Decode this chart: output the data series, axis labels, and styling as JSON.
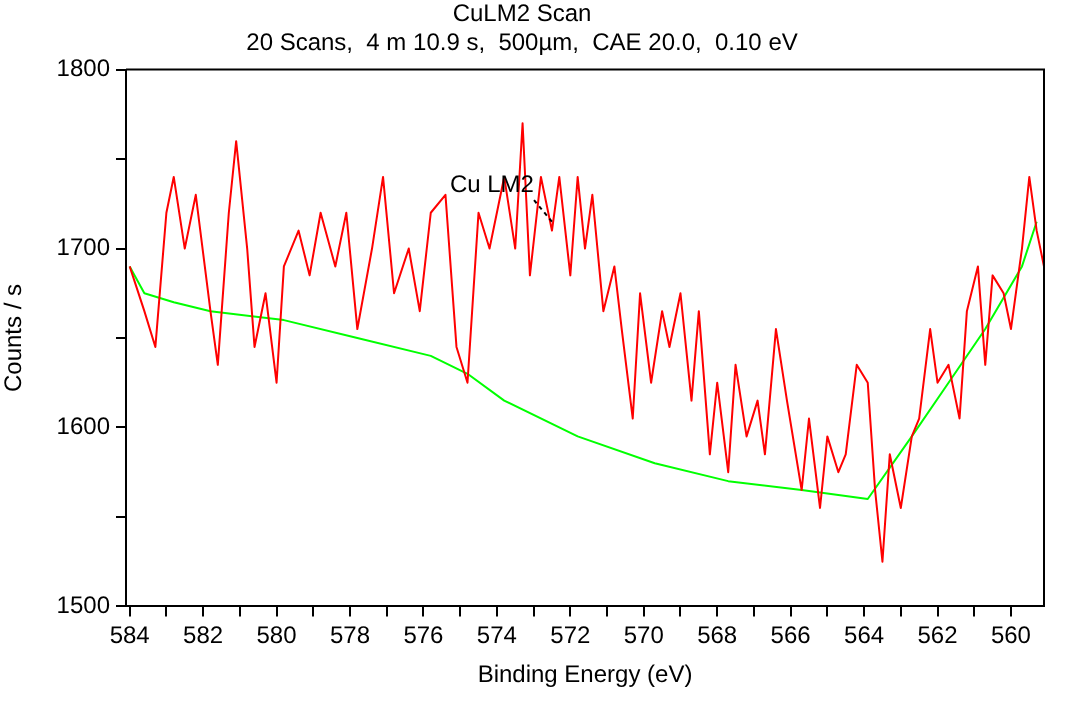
{
  "chart_data": {
    "type": "line",
    "title": "CuLM2 Scan",
    "subtitle": "20 Scans,  4 m 10.9 s,  500µm,  CAE 20.0,  0.10 eV",
    "xlabel": "Binding Energy (eV)",
    "ylabel": "Counts / s",
    "xlim": [
      584.1,
      559.1
    ],
    "xticks": [
      584,
      {
        "value": 583,
        "label": null
      },
      582,
      {
        "value": 581,
        "label": null
      },
      580,
      {
        "value": 579,
        "label": null
      },
      578,
      {
        "value": 577,
        "label": null
      },
      576,
      {
        "value": 575,
        "label": null
      },
      574,
      {
        "value": 573,
        "label": null
      },
      572,
      {
        "value": 571,
        "label": null
      },
      570,
      {
        "value": 569,
        "label": null
      },
      568,
      {
        "value": 567,
        "label": null
      },
      566,
      {
        "value": 565,
        "label": null
      },
      564,
      {
        "value": 563,
        "label": null
      },
      562,
      {
        "value": 561,
        "label": null
      },
      560
    ],
    "ylim": [
      1500,
      1800
    ],
    "yticks": [
      1500,
      {
        "value": 1550,
        "label": null
      },
      1600,
      {
        "value": 1650,
        "label": null
      },
      1700,
      {
        "value": 1750,
        "label": null
      },
      1800
    ],
    "grid": false,
    "legend": false,
    "marker": "none",
    "line_style": "solid",
    "annotations": [
      {
        "text": "Cu LM2",
        "x": 572.5,
        "y": 1715
      }
    ],
    "series": [
      {
        "color": "#ff0000",
        "x": [
          584.0,
          583.6,
          583.3,
          583.0,
          582.8,
          582.5,
          582.2,
          581.8,
          581.6,
          581.3,
          581.1,
          580.8,
          580.6,
          580.3,
          580.0,
          579.8,
          579.4,
          579.1,
          578.8,
          578.4,
          578.1,
          577.8,
          577.4,
          577.1,
          576.8,
          576.4,
          576.1,
          575.8,
          575.4,
          575.1,
          574.8,
          574.5,
          574.2,
          574.0,
          573.8,
          573.5,
          573.3,
          573.1,
          572.8,
          572.5,
          572.3,
          572.0,
          571.8,
          571.6,
          571.4,
          571.1,
          570.8,
          570.6,
          570.3,
          570.1,
          569.8,
          569.5,
          569.3,
          569.0,
          568.7,
          568.5,
          568.2,
          568.0,
          567.7,
          567.5,
          567.2,
          566.9,
          566.7,
          566.4,
          566.1,
          565.7,
          565.5,
          565.2,
          565.0,
          564.7,
          564.5,
          564.2,
          563.9,
          563.7,
          563.5,
          563.3,
          563.0,
          562.7,
          562.5,
          562.2,
          562.0,
          561.7,
          561.4,
          561.2,
          560.9,
          560.7,
          560.5,
          560.2,
          560.0,
          559.7,
          559.5,
          559.3,
          559.1
        ],
        "values": [
          1690,
          1665,
          1645,
          1720,
          1740,
          1700,
          1730,
          1665,
          1635,
          1720,
          1760,
          1700,
          1645,
          1675,
          1625,
          1690,
          1710,
          1685,
          1720,
          1690,
          1720,
          1655,
          1700,
          1740,
          1675,
          1700,
          1665,
          1720,
          1730,
          1645,
          1625,
          1720,
          1700,
          1720,
          1740,
          1700,
          1770,
          1685,
          1740,
          1710,
          1740,
          1685,
          1740,
          1700,
          1730,
          1665,
          1690,
          1655,
          1605,
          1675,
          1625,
          1665,
          1645,
          1675,
          1615,
          1665,
          1585,
          1625,
          1575,
          1635,
          1595,
          1615,
          1585,
          1655,
          1615,
          1565,
          1605,
          1555,
          1595,
          1575,
          1585,
          1635,
          1625,
          1565,
          1525,
          1585,
          1555,
          1595,
          1605,
          1655,
          1625,
          1635,
          1605,
          1665,
          1690,
          1635,
          1685,
          1675,
          1655,
          1700,
          1740,
          1710,
          1690
        ]
      },
      {
        "color": "#00ff00",
        "x": [
          584.0,
          583.6,
          582.8,
          581.8,
          579.8,
          577.8,
          575.8,
          574.8,
          573.8,
          571.8,
          569.7,
          567.7,
          565.7,
          563.9,
          562.7,
          561.7,
          560.7,
          559.7,
          559.3
        ],
        "values": [
          1690,
          1675,
          1670,
          1665,
          1660,
          1650,
          1640,
          1630,
          1615,
          1595,
          1580,
          1570,
          1565,
          1560,
          1595,
          1625,
          1655,
          1690,
          1715
        ]
      }
    ]
  }
}
